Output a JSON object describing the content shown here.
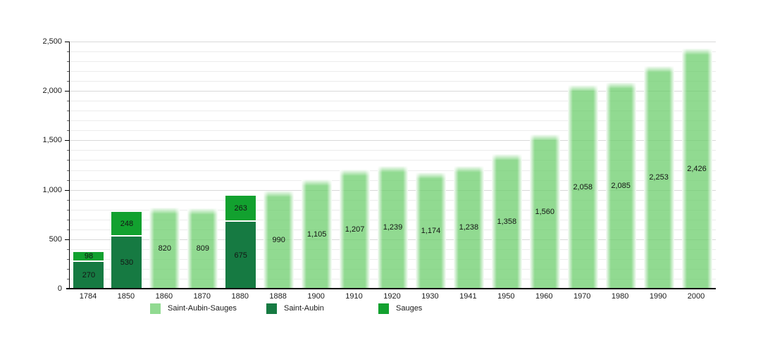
{
  "chart_data": {
    "type": "bar",
    "title": "",
    "description": "Population bar chart: stacked bars for Saint-Aubin and Sauges in early years, combined Saint-Aubin-Sauges bars otherwise",
    "categories": [
      "1784",
      "1850",
      "1860",
      "1870",
      "1880",
      "1888",
      "1900",
      "1910",
      "1920",
      "1930",
      "1941",
      "1950",
      "1960",
      "1970",
      "1980",
      "1990",
      "2000"
    ],
    "series": [
      {
        "name": "Saint-Aubin-Sauges",
        "color": "#9fdda0",
        "fill_rgba": "rgba(102, 204, 102, 0.72)",
        "values": [
          null,
          null,
          820,
          809,
          null,
          990,
          1105,
          1207,
          1239,
          1174,
          1238,
          1358,
          1560,
          2058,
          2085,
          2253,
          2426
        ]
      },
      {
        "name": "Saint-Aubin",
        "color": "#167a42",
        "values": [
          270,
          530,
          null,
          null,
          675,
          null,
          null,
          null,
          null,
          null,
          null,
          null,
          null,
          null,
          null,
          null,
          null
        ]
      },
      {
        "name": "Sauges",
        "color": "#12a12f",
        "values": [
          98,
          248,
          null,
          null,
          263,
          null,
          null,
          null,
          null,
          null,
          null,
          null,
          null,
          null,
          null,
          null,
          null
        ]
      }
    ],
    "ylim": [
      0,
      2500
    ],
    "y_ticks": [
      0,
      500,
      1000,
      1500,
      2000,
      2500
    ],
    "grid": {
      "minor_step": 100,
      "major_step": 500,
      "orientation": "horizontal"
    },
    "legend": {
      "position": "bottom",
      "entries": [
        {
          "label": "Saint-Aubin-Sauges",
          "series": 0
        },
        {
          "label": "Saint-Aubin",
          "series": 1
        },
        {
          "label": "Sauges",
          "series": 2
        }
      ]
    }
  }
}
